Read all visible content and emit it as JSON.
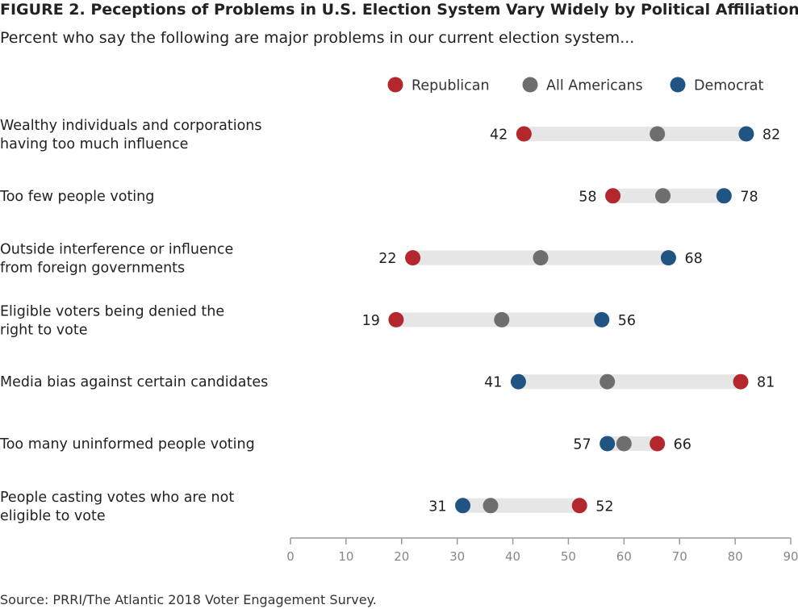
{
  "title": "FIGURE 2. Peceptions of Problems in U.S. Election System Vary Widely by Political Affiliation",
  "subtitle": "Percent who say the following are major problems in our current election system...",
  "source": "Source: PRRI/The Atlantic 2018 Voter Engagement Survey.",
  "chart_data": {
    "type": "dot",
    "legend_position": "top-right",
    "grid": false,
    "xlim": [
      0,
      90
    ],
    "xticks": [
      "0",
      "10",
      "20",
      "30",
      "40",
      "50",
      "60",
      "70",
      "80",
      "90"
    ],
    "series": [
      {
        "name": "Republican",
        "color": "#b3282d"
      },
      {
        "name": "All Americans",
        "color": "#6e6e6e"
      },
      {
        "name": "Democrat",
        "color": "#1f5483"
      }
    ],
    "categories": [
      {
        "label": [
          "Wealthy individuals and corporations",
          "having too much influence"
        ],
        "republican": 42,
        "all": 66,
        "democrat": 82
      },
      {
        "label": [
          "Too few people voting"
        ],
        "republican": 58,
        "all": 67,
        "democrat": 78
      },
      {
        "label": [
          "Outside interference or influence",
          "from foreign governments"
        ],
        "republican": 22,
        "all": 45,
        "democrat": 68
      },
      {
        "label": [
          "Eligible voters being denied the",
          "right to vote"
        ],
        "republican": 19,
        "all": 38,
        "democrat": 56
      },
      {
        "label": [
          "Media bias against certain candidates"
        ],
        "republican": 81,
        "all": 57,
        "democrat": 41
      },
      {
        "label": [
          "Too many uninformed people voting"
        ],
        "republican": 66,
        "all": 60,
        "democrat": 57
      },
      {
        "label": [
          "People casting votes who are not",
          "eligible to vote"
        ],
        "republican": 52,
        "all": 36,
        "democrat": 31
      }
    ]
  }
}
